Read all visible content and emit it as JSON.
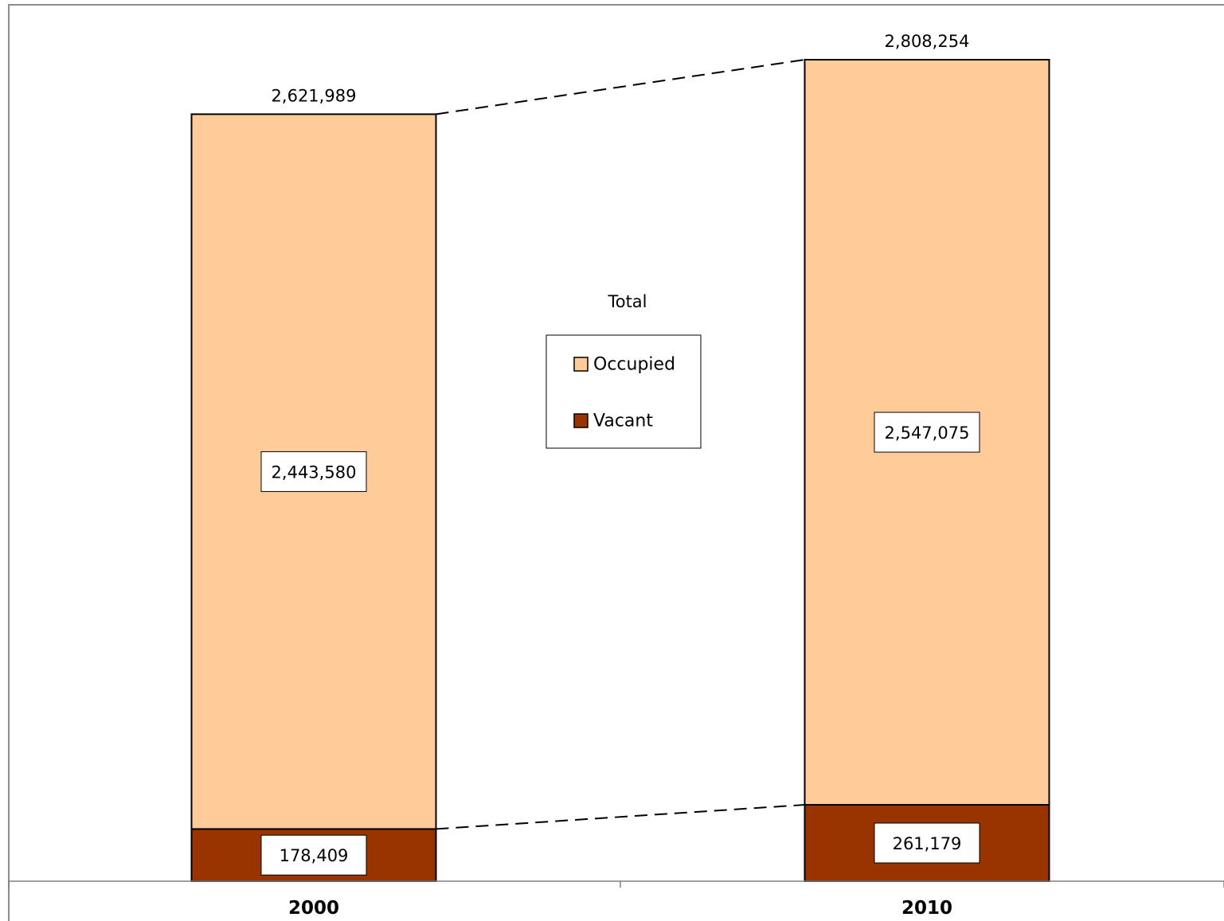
{
  "chart_data": {
    "type": "bar",
    "stacked": true,
    "categories": [
      "2000",
      "2010"
    ],
    "series": [
      {
        "name": "Vacant",
        "values": [
          178409,
          261179
        ],
        "labels": [
          "178,409",
          "261,179"
        ],
        "color": "#993300"
      },
      {
        "name": "Occupied",
        "values": [
          2443580,
          2547075
        ],
        "labels": [
          "2,443,580",
          "2,547,075"
        ],
        "color": "#ffcc99"
      }
    ],
    "totals": [
      2621989,
      2808254
    ],
    "total_labels": [
      "2,621,989",
      "2,808,254"
    ],
    "legend": {
      "title": "Total",
      "placement": "center",
      "entries": [
        "Occupied",
        "Vacant"
      ]
    },
    "ylim": [
      0,
      3000000
    ],
    "grid": false,
    "connector_lines": "dashed",
    "title": "",
    "xlabel": "",
    "ylabel": ""
  }
}
